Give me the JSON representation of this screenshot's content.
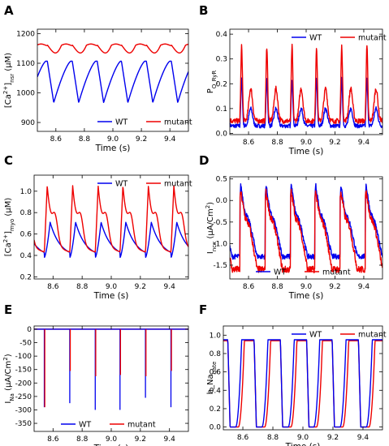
{
  "figure": {
    "time_label": "Time (s)",
    "panels": [
      {
        "letter": "A",
        "ylabel_base": "[Ca",
        "ylabel_sup": "2+",
        "ylabel_mid": "]",
        "ylabel_sub": "nsr",
        "ylabel_unit": " (μM)"
      },
      {
        "letter": "B",
        "ylabel_base": "P",
        "ylabel_sub": "O_RyR"
      },
      {
        "letter": "C",
        "ylabel_base": "[Ca",
        "ylabel_sup": "2+",
        "ylabel_mid": "]",
        "ylabel_sub": "myo",
        "ylabel_unit": " (μM)"
      },
      {
        "letter": "D",
        "ylabel_base": "I",
        "ylabel_sub": "ncx",
        "ylabel_unit": " (μA/Cm",
        "ylabel_unit_sup": "2",
        "ylabel_unit_end": ")"
      },
      {
        "letter": "E",
        "ylabel_base": "I",
        "ylabel_sub": "Na",
        "ylabel_unit": " (μA/Cm",
        "ylabel_unit_sup": "2",
        "ylabel_unit_end": ")"
      },
      {
        "letter": "F",
        "ylabel_base": "h_Na",
        "ylabel_sub": "gate"
      }
    ]
  },
  "chart_data": [
    {
      "type": "line",
      "panel": "A",
      "xlabel": "Time (s)",
      "xlim": [
        8.47,
        9.53
      ],
      "ylim": [
        870,
        1215
      ],
      "xticks": [
        "8.6",
        "8.8",
        "9.0",
        "9.2",
        "9.4"
      ],
      "xtick_values": [
        8.6,
        8.8,
        9.0,
        9.2,
        9.4
      ],
      "yticks": [
        "900",
        "1000",
        "1100",
        "1200"
      ],
      "ytick_values": [
        900,
        1000,
        1100,
        1200
      ],
      "legend_position": "lower-right",
      "beats": [
        8.54,
        8.715,
        8.89,
        9.06,
        9.235,
        9.41
      ],
      "series": [
        {
          "name": "WT",
          "color": "#0000ee",
          "baseline": 1105,
          "trough": 967,
          "peak": 1107
        },
        {
          "name": "mutant",
          "color": "#ee0000",
          "baseline": 1162,
          "trough": 1132,
          "peak": 1165
        }
      ]
    },
    {
      "type": "line",
      "panel": "B",
      "xlabel": "Time (s)",
      "xlim": [
        8.47,
        9.53
      ],
      "ylim": [
        -0.005,
        0.42
      ],
      "xticks": [
        "8.6",
        "8.8",
        "9.0",
        "9.2",
        "9.4"
      ],
      "xtick_values": [
        8.6,
        8.8,
        9.0,
        9.2,
        9.4
      ],
      "yticks": [
        "0.0",
        "0.1",
        "0.2",
        "0.3",
        "0.4"
      ],
      "ytick_values": [
        0.0,
        0.1,
        0.2,
        0.3,
        0.4
      ],
      "legend_position": "top-right",
      "beats": [
        8.54,
        8.715,
        8.89,
        9.06,
        9.235,
        9.41
      ],
      "series": [
        {
          "name": "WT",
          "color": "#0000ee",
          "baseline": 0.03,
          "peak": 0.22,
          "secondary": 0.07
        },
        {
          "name": "mutant",
          "color": "#ee0000",
          "baseline": 0.05,
          "peak": 0.35,
          "secondary": 0.13
        }
      ]
    },
    {
      "type": "line",
      "panel": "C",
      "xlabel": "Time (s)",
      "xlim": [
        8.47,
        9.53
      ],
      "ylim": [
        0.18,
        1.15
      ],
      "xticks": [
        "8.6",
        "8.8",
        "9.0",
        "9.2",
        "9.4"
      ],
      "xtick_values": [
        8.6,
        8.8,
        9.0,
        9.2,
        9.4
      ],
      "yticks": [
        "0.2",
        "0.4",
        "0.6",
        "0.8",
        "1.0"
      ],
      "ytick_values": [
        0.2,
        0.4,
        0.6,
        0.8,
        1.0
      ],
      "legend_position": "top-right",
      "beats": [
        8.54,
        8.715,
        8.89,
        9.06,
        9.235,
        9.41
      ],
      "series": [
        {
          "name": "WT",
          "color": "#0000ee",
          "baseline": 0.38,
          "peak": 0.71
        },
        {
          "name": "mutant",
          "color": "#ee0000",
          "baseline": 0.42,
          "peak": 1.05,
          "shoulder": 0.68
        }
      ]
    },
    {
      "type": "line",
      "panel": "D",
      "xlabel": "Time (s)",
      "xlim": [
        8.47,
        9.53
      ],
      "ylim": [
        -1.82,
        0.55
      ],
      "xticks": [
        "8.6",
        "8.8",
        "9.0",
        "9.2",
        "9.4"
      ],
      "xtick_values": [
        8.6,
        8.8,
        9.0,
        9.2,
        9.4
      ],
      "yticks": [
        "0.5",
        "0.0",
        "-0.5",
        "-1.0",
        "-1.5"
      ],
      "ytick_values": [
        0.5,
        0.0,
        -0.5,
        -1.0,
        -1.5
      ],
      "legend_position": "bottom",
      "beats": [
        8.54,
        8.715,
        8.89,
        9.06,
        9.235,
        9.41
      ],
      "series": [
        {
          "name": "WT",
          "color": "#0000ee",
          "peak": 0.37,
          "plateau": -0.3,
          "trough": -1.3
        },
        {
          "name": "mutant",
          "color": "#ee0000",
          "peak": 0.2,
          "plateau": -0.4,
          "trough": -1.6
        }
      ]
    },
    {
      "type": "line",
      "panel": "E",
      "xlabel": "Time (s)",
      "xlim": [
        8.47,
        9.53
      ],
      "ylim": [
        -380,
        12
      ],
      "xticks": [
        "8.6",
        "8.8",
        "9.0",
        "9.2",
        "9.4"
      ],
      "xtick_values": [
        8.6,
        8.8,
        9.0,
        9.2,
        9.4
      ],
      "yticks": [
        "0",
        "-50",
        "-100",
        "-150",
        "-200",
        "-250",
        "-300",
        "-350"
      ],
      "ytick_values": [
        0,
        -50,
        -100,
        -150,
        -200,
        -250,
        -300,
        -350
      ],
      "legend_position": "bottom",
      "beats": [
        8.54,
        8.715,
        8.89,
        9.06,
        9.235,
        9.41
      ],
      "series": [
        {
          "name": "WT",
          "color": "#0000ee",
          "spikes": [
            -290,
            -275,
            -300,
            -300,
            -255,
            -290
          ]
        },
        {
          "name": "mutant",
          "color": "#ee0000",
          "spikes": [
            -290,
            -155,
            -175,
            -170,
            -175,
            -155
          ]
        }
      ]
    },
    {
      "type": "line",
      "panel": "F",
      "xlabel": "Time (s)",
      "xlim": [
        8.47,
        9.53
      ],
      "ylim": [
        -0.03,
        1.1
      ],
      "xticks": [
        "8.6",
        "8.8",
        "9.0",
        "9.2",
        "9.4"
      ],
      "xtick_values": [
        8.6,
        8.8,
        9.0,
        9.2,
        9.4
      ],
      "yticks": [
        "0.0",
        "0.2",
        "0.4",
        "0.6",
        "0.8",
        "1.0"
      ],
      "ytick_values": [
        0.0,
        0.2,
        0.4,
        0.6,
        0.8,
        1.0
      ],
      "legend_position": "top-right",
      "beats": [
        8.54,
        8.715,
        8.89,
        9.06,
        9.235,
        9.41
      ],
      "series": [
        {
          "name": "WT",
          "color": "#0000ee",
          "plateau": 0.95
        },
        {
          "name": "mutant",
          "color": "#ee0000",
          "plateau": 0.94
        }
      ]
    }
  ]
}
